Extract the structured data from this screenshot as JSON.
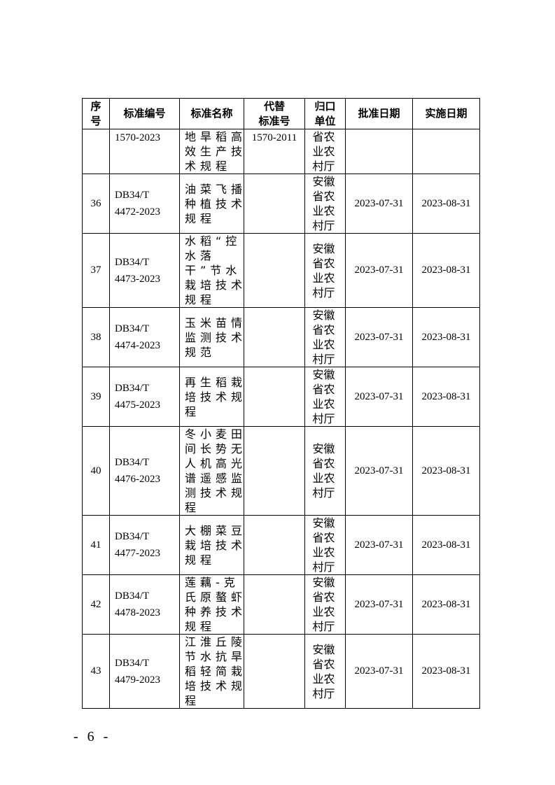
{
  "table": {
    "headers": [
      "序号",
      "标准编号",
      "标准名称",
      "代替标准号",
      "归口单位",
      "批准日期",
      "实施日期"
    ],
    "header_lines": {
      "seq": [
        "序",
        "号"
      ],
      "replace": [
        "代替",
        "标准号"
      ],
      "unit": [
        "归口",
        "单位"
      ]
    },
    "continued_row": {
      "code": "1570-2023",
      "name": "地旱稻高效生产技术规程",
      "replaces": "1570-2011",
      "unit": "省农业农村厅"
    },
    "rows": [
      {
        "seq": "36",
        "code1": "DB34/T",
        "code2": "4472-2023",
        "name": "油菜飞播种植技术规程",
        "replaces": "",
        "unit": "安徽省农业农村厅",
        "approved": "2023-07-31",
        "effective": "2023-08-31"
      },
      {
        "seq": "37",
        "code1": "DB34/T",
        "code2": "4473-2023",
        "name": "水稻“控水落干”节水栽培技术规程",
        "replaces": "",
        "unit": "安徽省农业农村厅",
        "approved": "2023-07-31",
        "effective": "2023-08-31"
      },
      {
        "seq": "38",
        "code1": "DB34/T",
        "code2": "4474-2023",
        "name": "玉米苗情监测技术规范",
        "replaces": "",
        "unit": "安徽省农业农村厅",
        "approved": "2023-07-31",
        "effective": "2023-08-31"
      },
      {
        "seq": "39",
        "code1": "DB34/T",
        "code2": "4475-2023",
        "name": "再生稻栽培技术规程",
        "replaces": "",
        "unit": "安徽省农业农村厅",
        "approved": "2023-07-31",
        "effective": "2023-08-31"
      },
      {
        "seq": "40",
        "code1": "DB34/T",
        "code2": "4476-2023",
        "name": "冬小麦田间长势无人机高光谱遥感监测技术规程",
        "replaces": "",
        "unit": "安徽省农业农村厅",
        "approved": "2023-07-31",
        "effective": "2023-08-31"
      },
      {
        "seq": "41",
        "code1": "DB34/T",
        "code2": "4477-2023",
        "name": "大棚菜豆栽培技术规程",
        "replaces": "",
        "unit": "安徽省农业农村厅",
        "approved": "2023-07-31",
        "effective": "2023-08-31"
      },
      {
        "seq": "42",
        "code1": "DB34/T",
        "code2": "4478-2023",
        "name": "莲藕-克氏原螯虾种养技术规程",
        "replaces": "",
        "unit": "安徽省农业农村厅",
        "approved": "2023-07-31",
        "effective": "2023-08-31"
      },
      {
        "seq": "43",
        "code1": "DB34/T",
        "code2": "4479-2023",
        "name": "江淮丘陵节水抗旱稻轻简栽培技术规程",
        "replaces": "",
        "unit": "安徽省农业农村厅",
        "approved": "2023-07-31",
        "effective": "2023-08-31"
      }
    ]
  },
  "page_number": "- 6 -"
}
